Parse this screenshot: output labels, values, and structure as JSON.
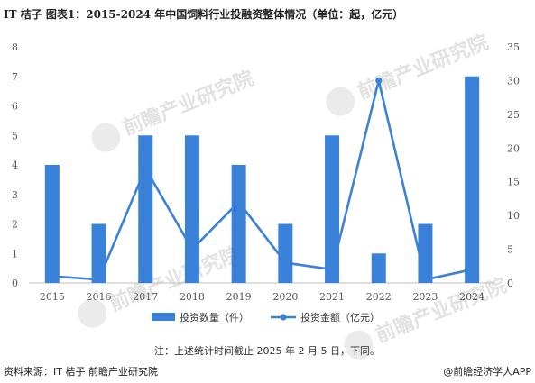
{
  "chart_data": {
    "type": "bar+line",
    "title": "IT 桔子  图表1：2015-2024 年中国饲料行业投融资整体情况（单位：起，亿元）",
    "categories": [
      "2015",
      "2016",
      "2017",
      "2018",
      "2019",
      "2020",
      "2021",
      "2022",
      "2023",
      "2024"
    ],
    "series": [
      {
        "name": "投资数量（件）",
        "type": "bar",
        "axis": "left",
        "values": [
          4,
          2,
          5,
          5,
          4,
          2,
          5,
          1,
          2,
          7
        ]
      },
      {
        "name": "投资金额（亿元）",
        "type": "line",
        "axis": "right",
        "values": [
          1,
          0.5,
          17,
          5,
          12,
          3,
          2,
          30,
          0.5,
          2
        ]
      }
    ],
    "ylim_left": [
      0,
      8
    ],
    "ylim_right": [
      0,
      35
    ],
    "yticks_left": [
      "0",
      "1",
      "2",
      "3",
      "4",
      "5",
      "6",
      "7",
      "8"
    ],
    "yticks_right": [
      "0",
      "5",
      "10",
      "15",
      "20",
      "25",
      "30",
      "35"
    ],
    "grid": false,
    "legend_position": "bottom",
    "colors": {
      "bar": "#3a82d9",
      "line": "#3a82d9"
    }
  },
  "note": "注：上述统计时间截止 2025 年 2 月 5 日，下同。",
  "footer": {
    "source": "资料来源：IT 桔子 前瞻产业研究院",
    "brand": "@前瞻经济学人APP"
  },
  "watermark": {
    "text": "前瞻产业研究院"
  }
}
